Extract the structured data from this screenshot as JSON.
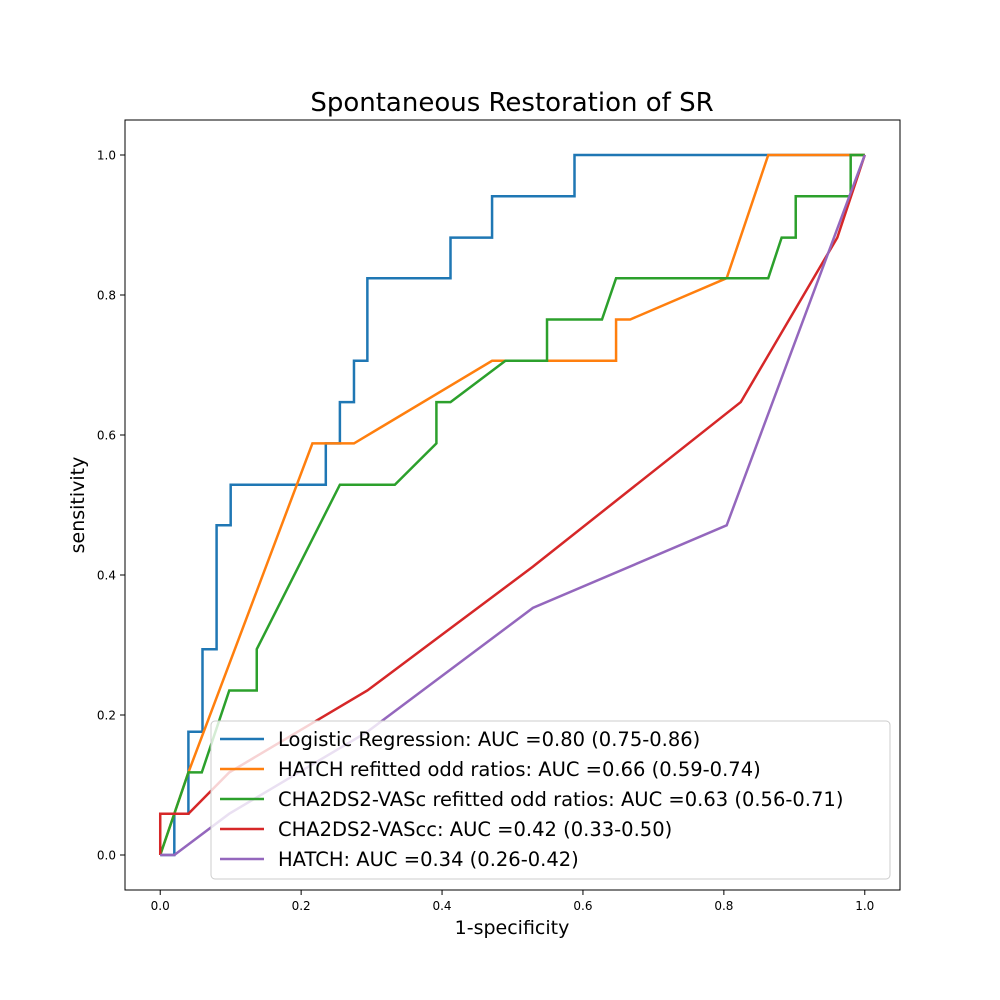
{
  "chart_data": {
    "type": "line",
    "title": "Spontaneous Restoration of SR",
    "xlabel": "1-specificity",
    "ylabel": "sensitivity",
    "xlim": [
      -0.05,
      1.05
    ],
    "ylim": [
      -0.05,
      1.05
    ],
    "xticks": [
      0.0,
      0.2,
      0.4,
      0.6,
      0.8,
      1.0
    ],
    "yticks": [
      0.0,
      0.2,
      0.4,
      0.6,
      0.8,
      1.0
    ],
    "xtick_labels": [
      "0.0",
      "0.2",
      "0.4",
      "0.6",
      "0.8",
      "1.0"
    ],
    "ytick_labels": [
      "0.0",
      "0.2",
      "0.4",
      "0.6",
      "0.8",
      "1.0"
    ],
    "grid": false,
    "legend_position": "lower-right",
    "series": [
      {
        "name": "Logistic Regression: AUC =0.80 (0.75-0.86)",
        "color": "#1f77b4",
        "points": [
          [
            0,
            0
          ],
          [
            0.02,
            0
          ],
          [
            0.02,
            0.059
          ],
          [
            0.04,
            0.059
          ],
          [
            0.04,
            0.176
          ],
          [
            0.06,
            0.176
          ],
          [
            0.06,
            0.294
          ],
          [
            0.08,
            0.294
          ],
          [
            0.08,
            0.471
          ],
          [
            0.1,
            0.471
          ],
          [
            0.1,
            0.529
          ],
          [
            0.235,
            0.529
          ],
          [
            0.235,
            0.588
          ],
          [
            0.255,
            0.588
          ],
          [
            0.255,
            0.647
          ],
          [
            0.275,
            0.647
          ],
          [
            0.275,
            0.706
          ],
          [
            0.294,
            0.706
          ],
          [
            0.294,
            0.824
          ],
          [
            0.412,
            0.824
          ],
          [
            0.412,
            0.882
          ],
          [
            0.471,
            0.882
          ],
          [
            0.471,
            0.941
          ],
          [
            0.588,
            0.941
          ],
          [
            0.588,
            1.0
          ],
          [
            1.0,
            1.0
          ]
        ]
      },
      {
        "name": "HATCH refitted odd ratios: AUC =0.66 (0.59-0.74)",
        "color": "#ff7f0e",
        "points": [
          [
            0,
            0
          ],
          [
            0.02,
            0.059
          ],
          [
            0.04,
            0.118
          ],
          [
            0.216,
            0.588
          ],
          [
            0.275,
            0.588
          ],
          [
            0.471,
            0.706
          ],
          [
            0.647,
            0.706
          ],
          [
            0.647,
            0.765
          ],
          [
            0.667,
            0.765
          ],
          [
            0.804,
            0.824
          ],
          [
            0.863,
            1.0
          ],
          [
            1.0,
            1.0
          ]
        ]
      },
      {
        "name": "CHA2DS2-VASc refitted odd ratios: AUC =0.63 (0.56-0.71)",
        "color": "#2ca02c",
        "points": [
          [
            0,
            0
          ],
          [
            0.04,
            0.118
          ],
          [
            0.059,
            0.118
          ],
          [
            0.098,
            0.235
          ],
          [
            0.137,
            0.235
          ],
          [
            0.137,
            0.294
          ],
          [
            0.255,
            0.529
          ],
          [
            0.333,
            0.529
          ],
          [
            0.392,
            0.588
          ],
          [
            0.392,
            0.647
          ],
          [
            0.412,
            0.647
          ],
          [
            0.49,
            0.706
          ],
          [
            0.549,
            0.706
          ],
          [
            0.549,
            0.765
          ],
          [
            0.627,
            0.765
          ],
          [
            0.647,
            0.824
          ],
          [
            0.863,
            0.824
          ],
          [
            0.882,
            0.882
          ],
          [
            0.902,
            0.882
          ],
          [
            0.902,
            0.941
          ],
          [
            0.98,
            0.941
          ],
          [
            0.98,
            1.0
          ],
          [
            1.0,
            1.0
          ]
        ]
      },
      {
        "name": "CHA2DS2-VAScc: AUC =0.42 (0.33-0.50)",
        "color": "#d62728",
        "points": [
          [
            0,
            0
          ],
          [
            0,
            0.059
          ],
          [
            0.04,
            0.059
          ],
          [
            0.098,
            0.118
          ],
          [
            0.294,
            0.235
          ],
          [
            0.529,
            0.412
          ],
          [
            0.824,
            0.647
          ],
          [
            0.961,
            0.882
          ],
          [
            1.0,
            1.0
          ]
        ]
      },
      {
        "name": "HATCH: AUC =0.34 (0.26-0.42)",
        "color": "#9467bd",
        "points": [
          [
            0,
            0
          ],
          [
            0.02,
            0
          ],
          [
            0.098,
            0.059
          ],
          [
            0.294,
            0.176
          ],
          [
            0.529,
            0.353
          ],
          [
            0.804,
            0.471
          ],
          [
            1.0,
            1.0
          ]
        ]
      }
    ]
  }
}
